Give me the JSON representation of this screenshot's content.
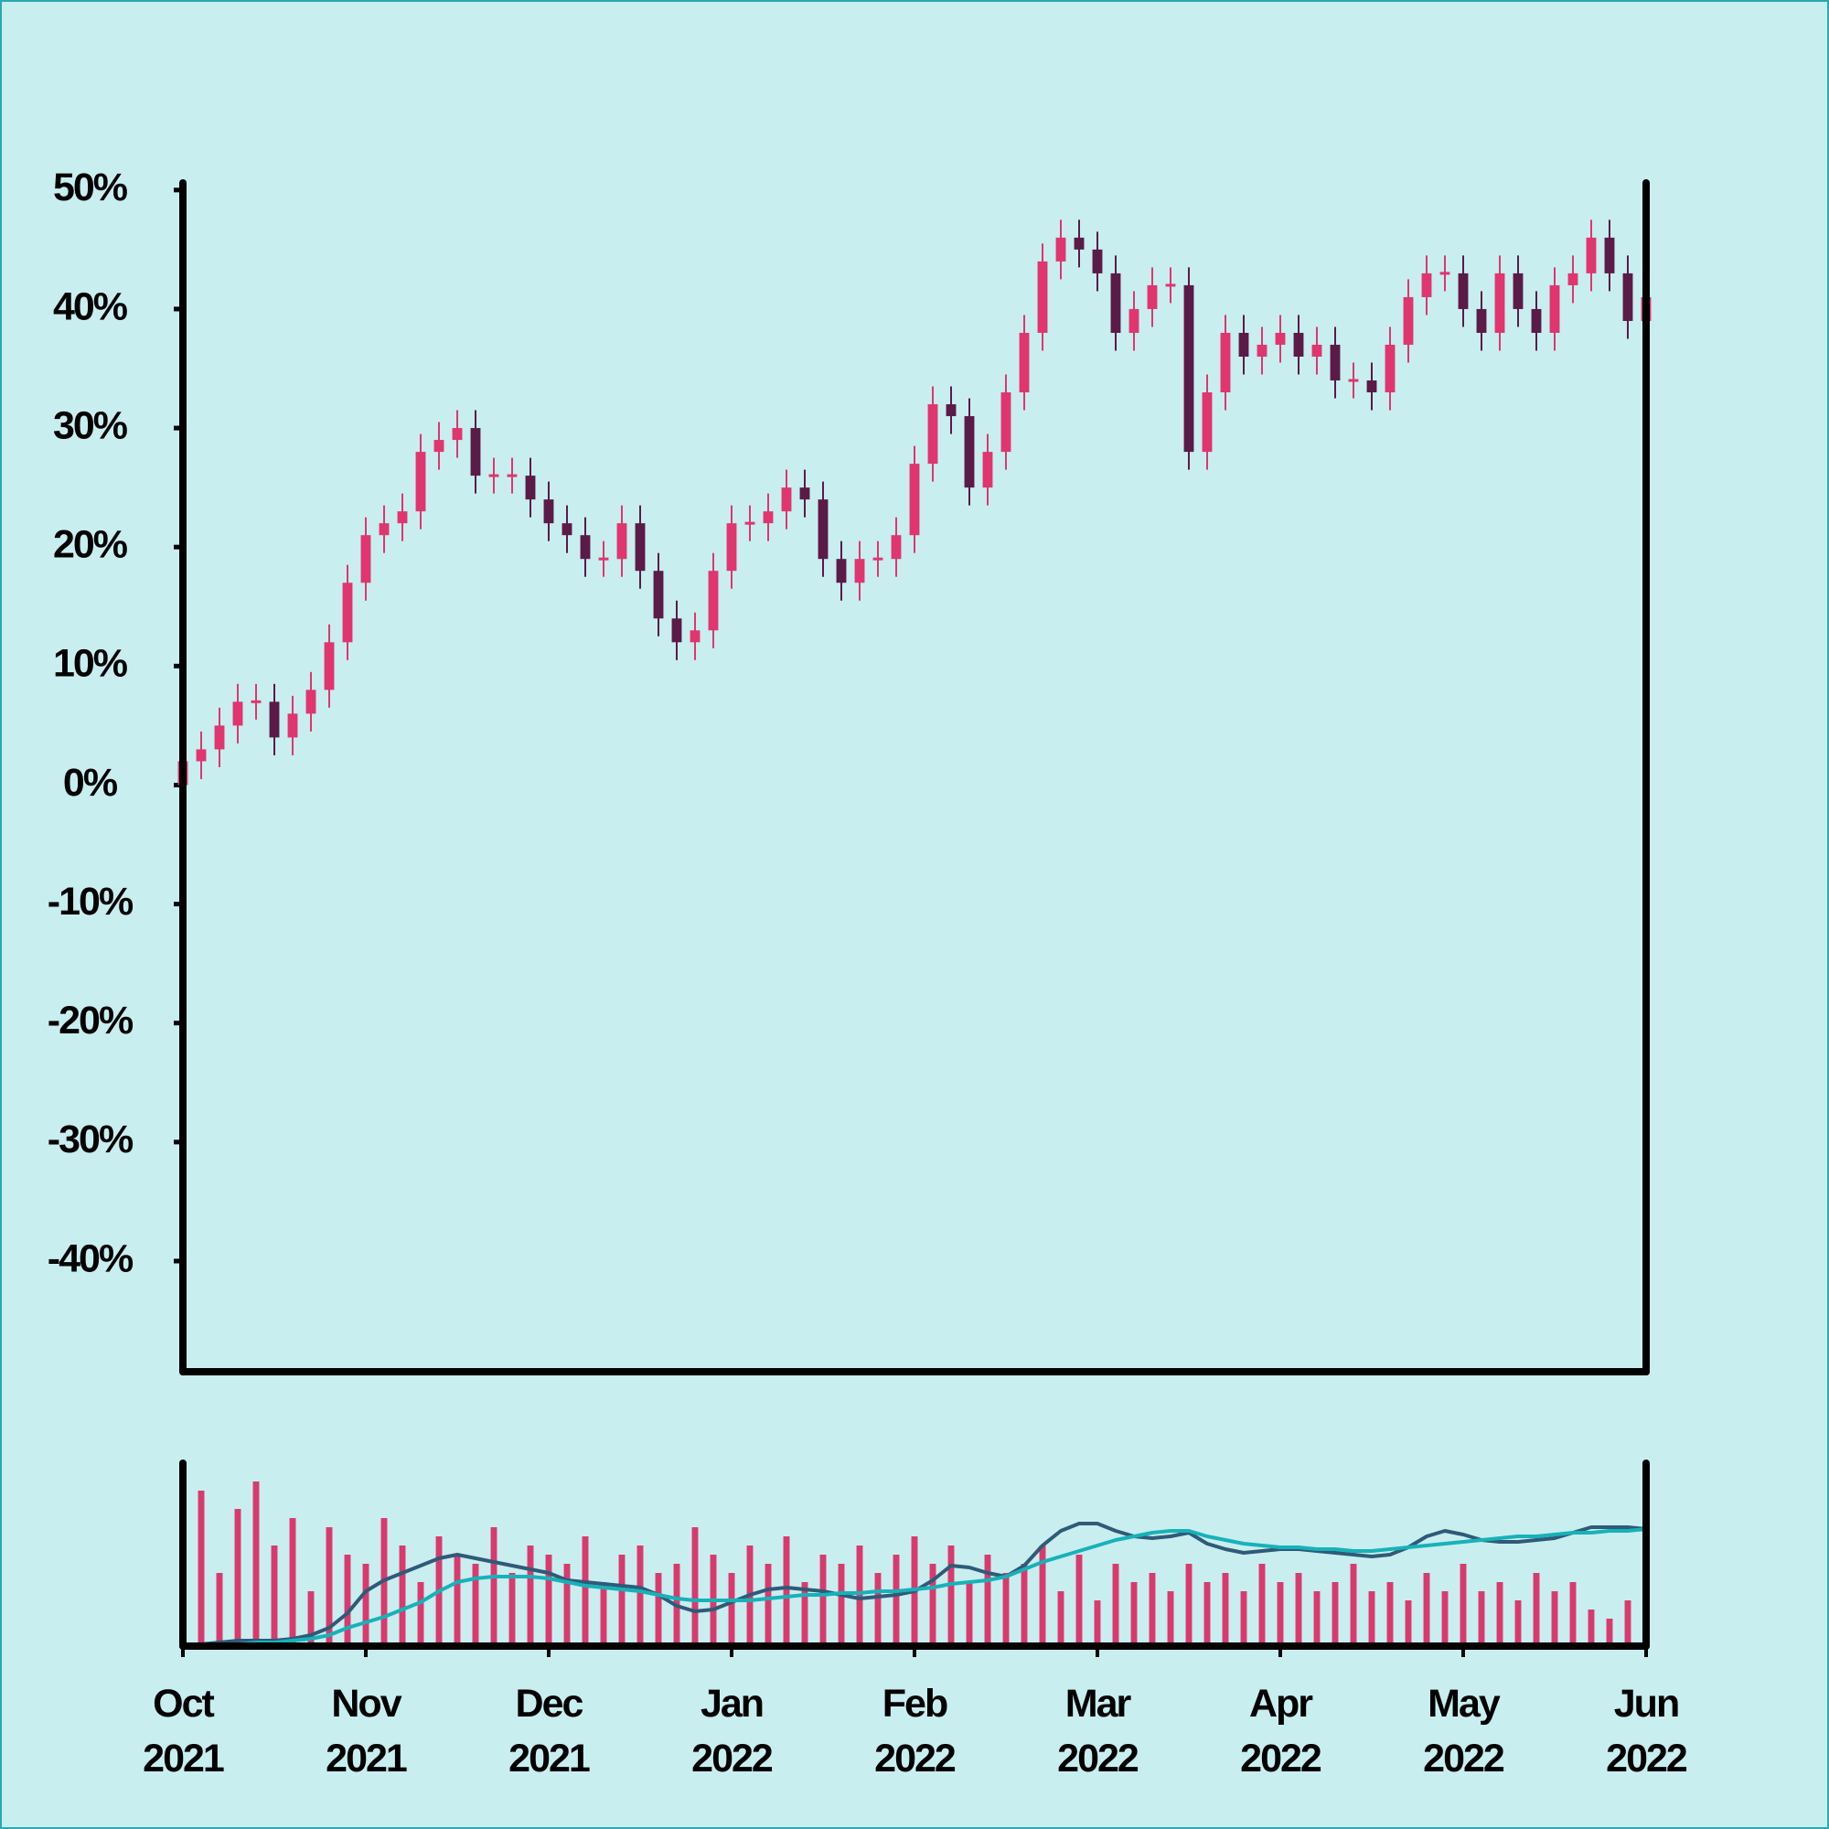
{
  "chart_data": [
    {
      "type": "candlestick",
      "x": [
        0,
        0.1,
        0.2,
        0.3,
        0.4,
        0.5,
        0.6,
        0.7,
        0.8,
        0.9,
        1,
        1.1,
        1.2,
        1.3,
        1.4,
        1.5,
        1.6,
        1.7,
        1.8,
        1.9,
        2,
        2.1,
        2.2,
        2.3,
        2.4,
        2.5,
        2.6,
        2.7,
        2.8,
        2.9,
        3,
        3.1,
        3.2,
        3.3,
        3.4,
        3.5,
        3.6,
        3.7,
        3.8,
        3.9,
        4,
        4.1,
        4.2,
        4.3,
        4.4,
        4.5,
        4.6,
        4.7,
        4.8,
        4.9,
        5,
        5.1,
        5.2,
        5.3,
        5.4,
        5.5,
        5.6,
        5.7,
        5.8,
        5.9,
        6,
        6.1,
        6.2,
        6.3,
        6.4,
        6.5,
        6.6,
        6.7,
        6.8,
        6.9,
        7,
        7.1,
        7.2,
        7.3,
        7.4,
        7.5,
        7.6,
        7.7,
        7.8,
        7.9,
        8
      ],
      "open": [
        0,
        2,
        3,
        5,
        7,
        7,
        4,
        6,
        8,
        12,
        17,
        21,
        22,
        23,
        28,
        29,
        30,
        26,
        26,
        26,
        24,
        22,
        21,
        19,
        19,
        22,
        18,
        14,
        12,
        13,
        18,
        22,
        22,
        23,
        25,
        24,
        19,
        17,
        19,
        19,
        21,
        27,
        32,
        31,
        25,
        28,
        33,
        38,
        44,
        46,
        45,
        43,
        38,
        40,
        42,
        42,
        28,
        33,
        38,
        36,
        37,
        38,
        36,
        37,
        34,
        34,
        33,
        37,
        41,
        43,
        43,
        40,
        38,
        43,
        40,
        38,
        42,
        43,
        46,
        43,
        39
      ],
      "high": [
        3.5,
        4.5,
        6.5,
        8.5,
        8.5,
        8.5,
        7.5,
        9.5,
        13.5,
        18.5,
        22.5,
        23.5,
        24.5,
        29.5,
        30.5,
        31.5,
        31.5,
        27.5,
        27.5,
        27.5,
        25.5,
        23.5,
        22.5,
        20.5,
        23.5,
        23.5,
        19.5,
        15.5,
        14.5,
        19.5,
        23.5,
        23.5,
        24.5,
        26.5,
        26.5,
        25.5,
        20.5,
        20.5,
        20.5,
        22.5,
        28.5,
        33.5,
        33.5,
        32.5,
        29.5,
        34.5,
        39.5,
        45.5,
        47.5,
        47.5,
        46.5,
        44.5,
        41.5,
        43.5,
        43.5,
        43.5,
        34.5,
        39.5,
        39.5,
        38.5,
        39.5,
        39.5,
        38.5,
        38.5,
        35.5,
        35.5,
        38.5,
        42.5,
        44.5,
        44.5,
        44.5,
        41.5,
        44.5,
        44.5,
        41.5,
        43.5,
        44.5,
        47.5,
        47.5,
        44.5,
        42.5
      ],
      "low": [
        -1.5,
        0.5,
        1.5,
        3.5,
        5.5,
        2.5,
        2.5,
        4.5,
        6.5,
        10.5,
        15.5,
        19.5,
        20.5,
        21.5,
        26.5,
        27.5,
        24.5,
        24.5,
        24.5,
        22.5,
        20.5,
        19.5,
        17.5,
        17.5,
        17.5,
        16.5,
        12.5,
        10.5,
        10.5,
        11.5,
        16.5,
        20.5,
        20.5,
        21.5,
        22.5,
        17.5,
        15.5,
        15.5,
        17.5,
        17.5,
        19.5,
        25.5,
        29.5,
        23.5,
        23.5,
        26.5,
        31.5,
        36.5,
        42.5,
        43.5,
        41.5,
        36.5,
        36.5,
        38.5,
        40.5,
        26.5,
        26.5,
        31.5,
        34.5,
        34.5,
        35.5,
        34.5,
        34.5,
        32.5,
        32.5,
        31.5,
        31.5,
        35.5,
        39.5,
        41.5,
        38.5,
        36.5,
        36.5,
        38.5,
        36.5,
        36.5,
        40.5,
        41.5,
        41.5,
        37.5,
        37.5
      ],
      "close": [
        2,
        3,
        5,
        7,
        7,
        4,
        6,
        8,
        12,
        17,
        21,
        22,
        23,
        28,
        29,
        30,
        26,
        26,
        26,
        24,
        22,
        21,
        19,
        19,
        22,
        18,
        14,
        12,
        13,
        18,
        22,
        22,
        23,
        25,
        24,
        19,
        17,
        19,
        19,
        21,
        27,
        32,
        31,
        25,
        28,
        33,
        38,
        44,
        46,
        45,
        43,
        38,
        40,
        42,
        42,
        28,
        33,
        38,
        36,
        37,
        38,
        36,
        37,
        34,
        34,
        33,
        37,
        41,
        43,
        43,
        40,
        38,
        43,
        40,
        38,
        42,
        43,
        46,
        43,
        39,
        41
      ],
      "up_color": "#e0356e",
      "down_color": "#5b1a48",
      "xlim": [
        0,
        8
      ],
      "ylim": [
        -49.3,
        50.6
      ],
      "yticks": [
        {
          "value": 50,
          "label": "50%"
        },
        {
          "value": 40,
          "label": "40%"
        },
        {
          "value": 30,
          "label": "30%"
        },
        {
          "value": 20,
          "label": "20%"
        },
        {
          "value": 10,
          "label": "10%"
        },
        {
          "value": 0,
          "label": "0%"
        },
        {
          "value": -10,
          "label": "-10%"
        },
        {
          "value": -20,
          "label": "-20%"
        },
        {
          "value": -30,
          "label": "-30%"
        },
        {
          "value": -40,
          "label": "-40%"
        }
      ]
    },
    {
      "type": "volume",
      "x": [
        0,
        0.1,
        0.2,
        0.3,
        0.4,
        0.5,
        0.6,
        0.7,
        0.8,
        0.9,
        1,
        1.1,
        1.2,
        1.3,
        1.4,
        1.5,
        1.6,
        1.7,
        1.8,
        1.9,
        2,
        2.1,
        2.2,
        2.3,
        2.4,
        2.5,
        2.6,
        2.7,
        2.8,
        2.9,
        3,
        3.1,
        3.2,
        3.3,
        3.4,
        3.5,
        3.6,
        3.7,
        3.8,
        3.9,
        4,
        4.1,
        4.2,
        4.3,
        4.4,
        4.5,
        4.6,
        4.7,
        4.8,
        4.9,
        5,
        5.1,
        5.2,
        5.3,
        5.4,
        5.5,
        5.6,
        5.7,
        5.8,
        5.9,
        6,
        6.1,
        6.2,
        6.3,
        6.4,
        6.5,
        6.6,
        6.7,
        6.8,
        6.9,
        7,
        7.1,
        7.2,
        7.3,
        7.4,
        7.5,
        7.6,
        7.7,
        7.8,
        7.9,
        8
      ],
      "values": [
        60,
        85,
        40,
        75,
        90,
        55,
        70,
        30,
        65,
        50,
        45,
        70,
        55,
        35,
        60,
        50,
        45,
        65,
        40,
        55,
        50,
        45,
        60,
        35,
        50,
        55,
        40,
        45,
        65,
        50,
        40,
        55,
        45,
        60,
        35,
        50,
        45,
        55,
        40,
        50,
        60,
        45,
        55,
        35,
        50,
        40,
        45,
        55,
        30,
        50,
        25,
        45,
        35,
        40,
        30,
        45,
        35,
        40,
        30,
        45,
        35,
        40,
        30,
        35,
        45,
        30,
        35,
        25,
        40,
        30,
        45,
        30,
        35,
        25,
        40,
        30,
        35,
        20,
        15,
        25,
        30
      ],
      "color": "#d93a6e",
      "series": [
        {
          "color": "#2f5a78",
          "values": [
            0,
            1,
            2,
            3,
            3,
            3,
            4,
            6,
            10,
            18,
            30,
            36,
            40,
            44,
            48,
            50,
            48,
            46,
            44,
            42,
            40,
            36,
            35,
            34,
            33,
            32,
            28,
            22,
            19,
            20,
            24,
            28,
            31,
            32,
            31,
            30,
            28,
            26,
            27,
            28,
            30,
            36,
            44,
            43,
            40,
            38,
            44,
            55,
            63,
            67,
            67,
            63,
            60,
            59,
            60,
            62,
            56,
            53,
            51,
            52,
            53,
            53,
            52,
            51,
            50,
            49,
            50,
            54,
            60,
            63,
            61,
            58,
            57,
            57,
            58,
            59,
            62,
            65,
            65,
            65,
            64
          ]
        },
        {
          "color": "#17b2b8",
          "values": [
            0,
            0,
            1,
            1,
            2,
            2,
            3,
            4,
            6,
            10,
            13,
            16,
            20,
            24,
            30,
            35,
            37,
            38,
            38,
            38,
            37,
            35,
            33,
            32,
            31,
            30,
            28,
            26,
            25,
            25,
            25,
            25,
            26,
            27,
            28,
            28,
            29,
            29,
            30,
            30,
            31,
            32,
            34,
            35,
            36,
            38,
            42,
            46,
            49,
            52,
            55,
            58,
            60,
            62,
            63,
            63,
            60,
            58,
            56,
            55,
            54,
            54,
            53,
            53,
            52,
            52,
            53,
            54,
            55,
            56,
            57,
            58,
            59,
            60,
            60,
            61,
            62,
            62,
            63,
            63,
            64
          ]
        }
      ],
      "xlim": [
        0,
        8
      ],
      "ylim": [
        0,
        100
      ],
      "xticks": [
        {
          "value": 0,
          "label": "Oct 2021"
        },
        {
          "value": 1,
          "label": "Nov 2021"
        },
        {
          "value": 2,
          "label": "Dec 2021"
        },
        {
          "value": 3,
          "label": "Jan 2022"
        },
        {
          "value": 4,
          "label": "Feb 2022"
        },
        {
          "value": 5,
          "label": "Mar 2022"
        },
        {
          "value": 6,
          "label": "Apr 2022"
        },
        {
          "value": 7,
          "label": "May 2022"
        },
        {
          "value": 8,
          "label": "Jun 2022"
        }
      ]
    }
  ]
}
